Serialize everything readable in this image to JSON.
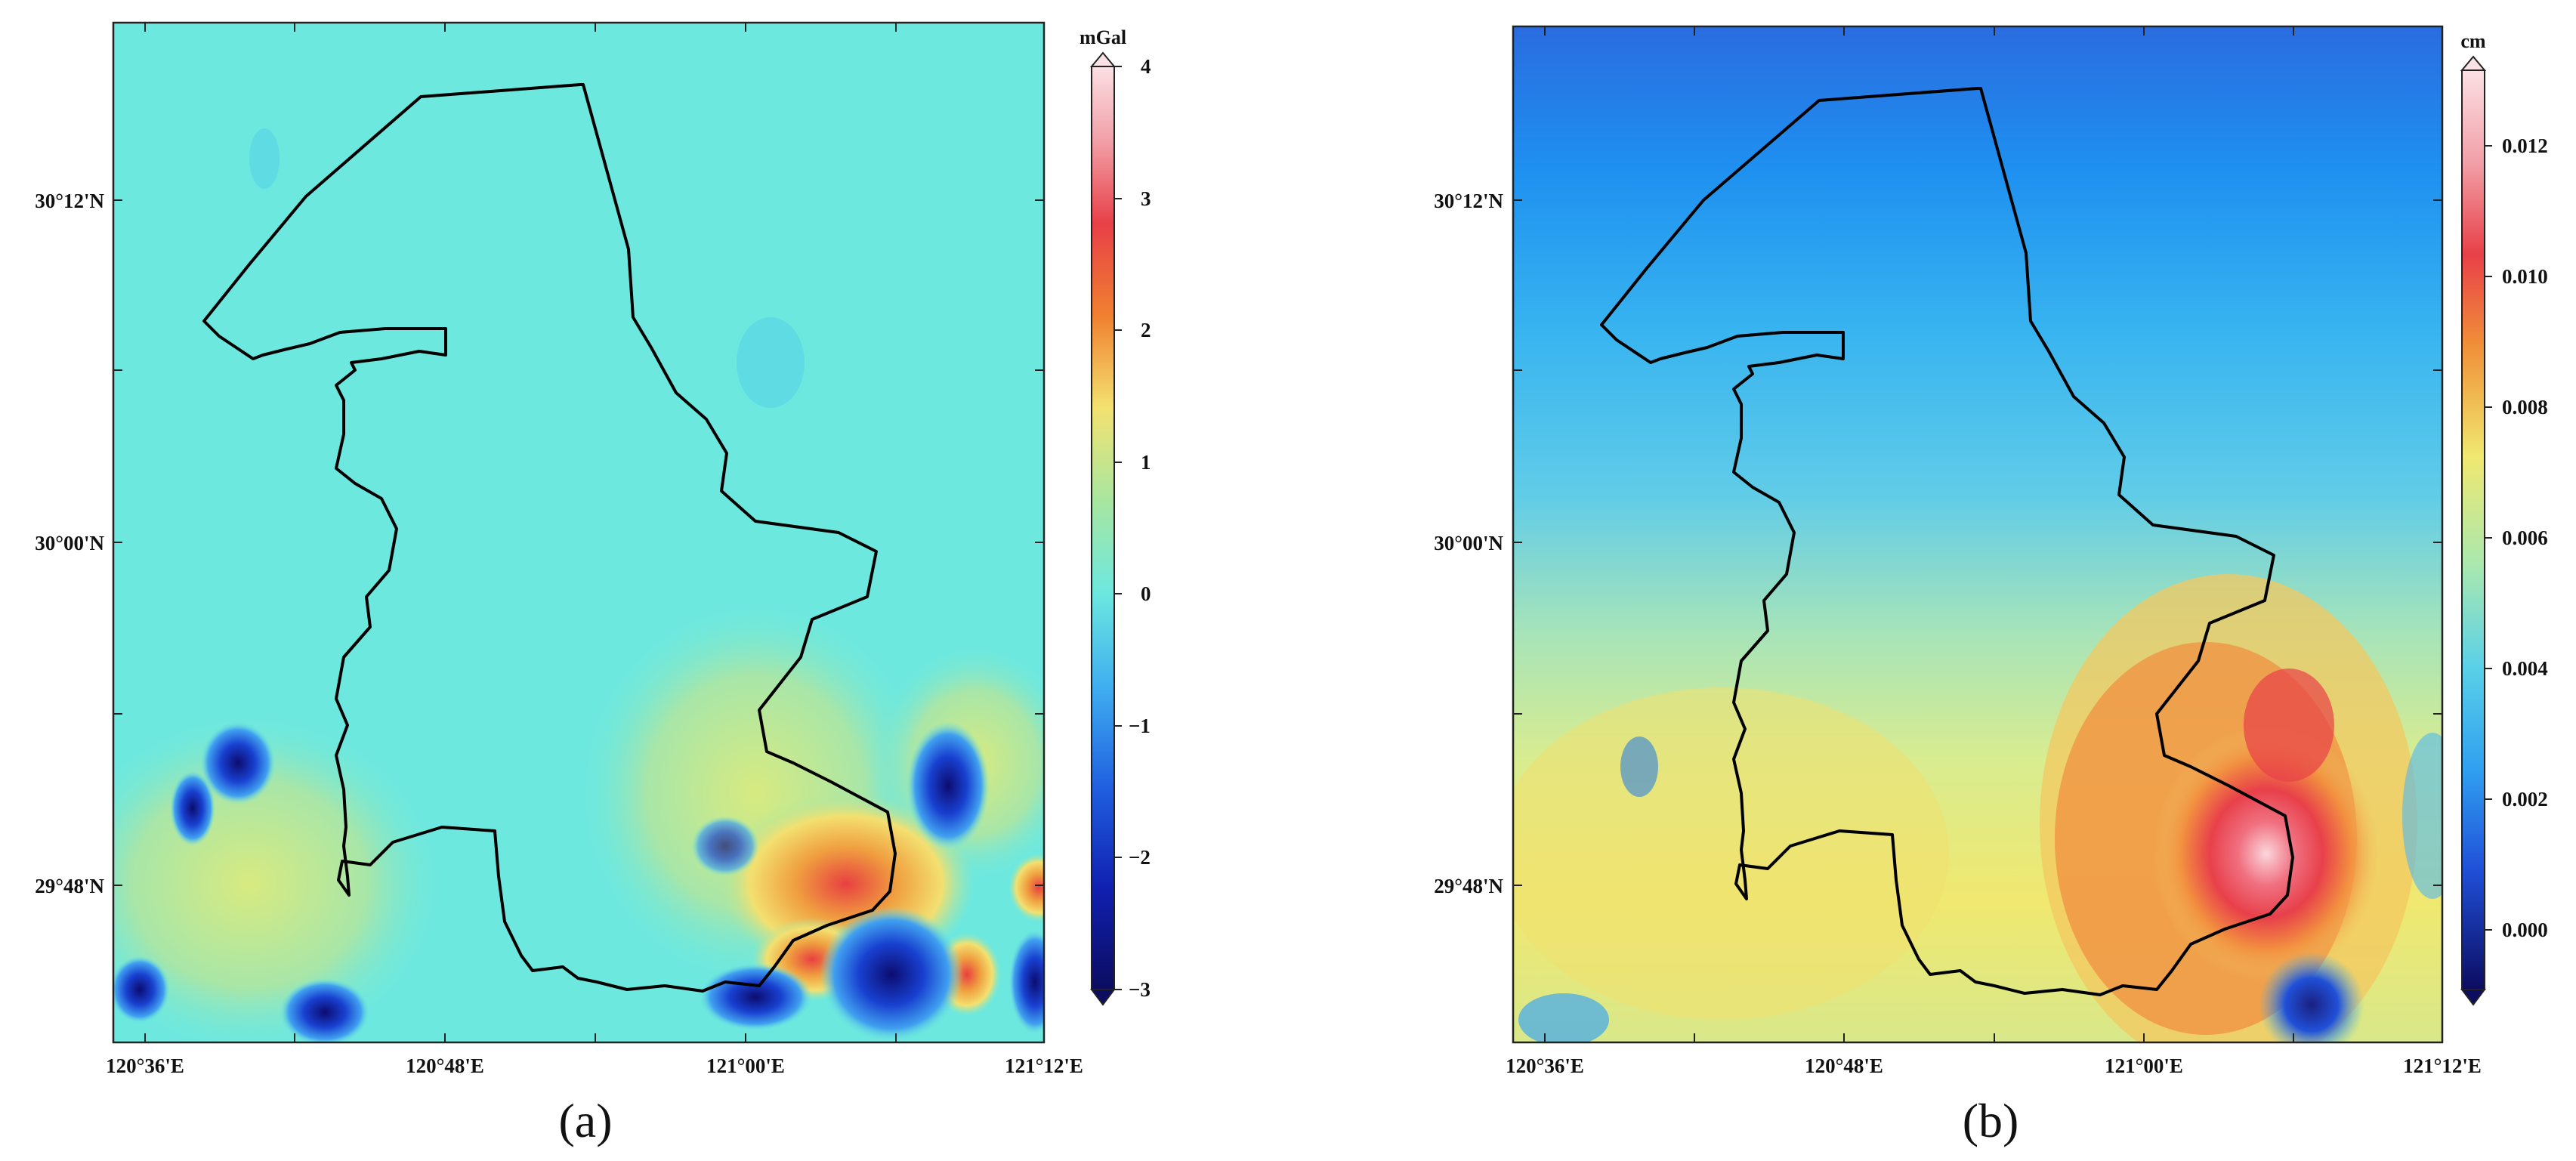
{
  "panels": [
    {
      "letter_text": "(a)",
      "colorbar_unit": "mGal",
      "colorbar_ticks": [
        "4",
        "3",
        "2",
        "1",
        "0",
        "−1",
        "−2",
        "−3"
      ],
      "lat_labels": [
        "30°12'N",
        "30°00'N",
        "29°48'N"
      ],
      "lon_labels": [
        "120°36'E",
        "120°48'E",
        "121°00'E",
        "121°12'E"
      ]
    },
    {
      "letter_text": "(b)",
      "colorbar_unit": "cm",
      "colorbar_ticks": [
        "0.012",
        "0.010",
        "0.008",
        "0.006",
        "0.004",
        "0.002",
        "0.000"
      ],
      "lat_labels": [
        "30°12'N",
        "30°00'N",
        "29°48'N"
      ],
      "lon_labels": [
        "120°36'E",
        "120°48'E",
        "121°00'E",
        "121°12'E"
      ]
    }
  ],
  "colors": {
    "panel_a_background": "#6de8df",
    "panel_b_north": "#2a6ce0",
    "panel_b_south": "#f0e870",
    "anomaly_high": "#e8343c",
    "anomaly_low": "#1a1a9a"
  }
}
